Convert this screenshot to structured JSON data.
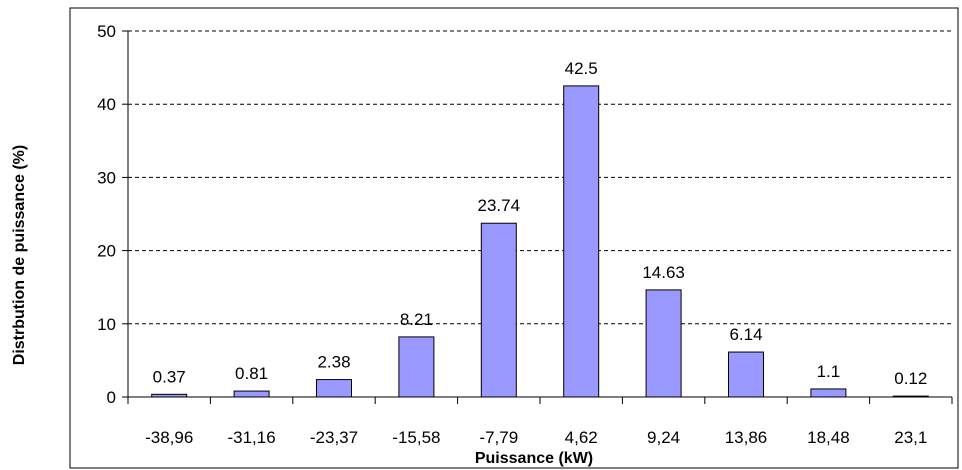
{
  "chart_data": {
    "type": "bar",
    "title": "",
    "xlabel": "Puissance (kW)",
    "ylabel": "Distrbution de puissance (%)",
    "categories": [
      "-38,96",
      "-31,16",
      "-23,37",
      "-15,58",
      "-7,79",
      "4,62",
      "9,24",
      "13,86",
      "18,48",
      "23,1"
    ],
    "values": [
      0.37,
      0.81,
      2.38,
      8.21,
      23.74,
      42.5,
      14.63,
      6.14,
      1.1,
      0.12
    ],
    "data_labels": [
      "0.37",
      "0.81",
      "2.38",
      "8.21",
      "23.74",
      "42.5",
      "14.63",
      "6.14",
      "1.1",
      "0.12"
    ],
    "y_ticks": [
      0,
      10,
      20,
      30,
      40,
      50
    ],
    "ylim": [
      0,
      50
    ],
    "grid": "horizontal dashed",
    "legend": "none",
    "colors": {
      "bar_fill": "#9999ff",
      "bar_stroke": "#000000",
      "grid": "#000000"
    }
  }
}
